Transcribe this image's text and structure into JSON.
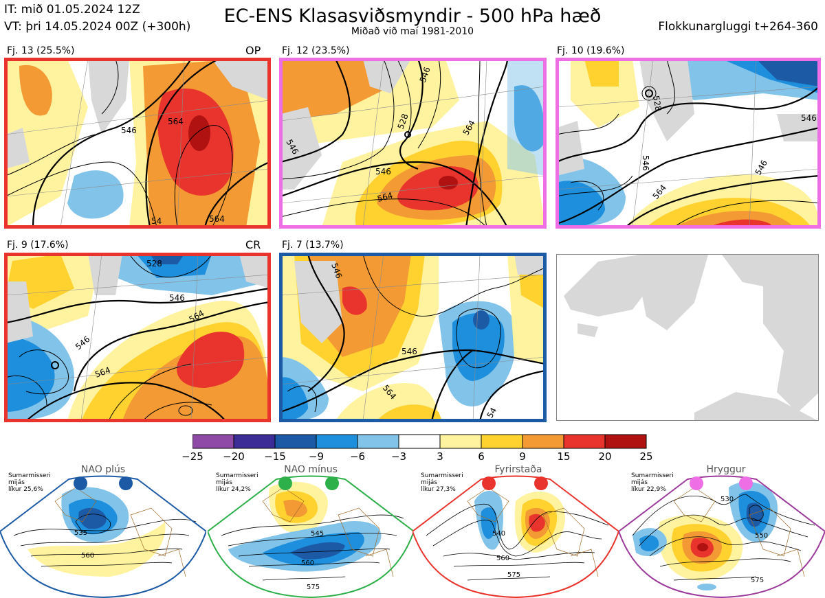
{
  "header": {
    "it": "IT: mið 01.05.2024 12Z",
    "vt": "VT: þri 14.05.2024 00Z  (+300h)",
    "title": "EC-ENS Klasasviðsmyndir - 500 hPa hæð",
    "subtitle": "Miðað við maí 1981-2010",
    "window": "Flokkunargluggi t+264-360"
  },
  "clusters": [
    {
      "label": "Fj. 13 (25.5%)",
      "tag": "OP",
      "regime_color": "#e8342c",
      "contours": [
        "546",
        "564",
        "564",
        "54"
      ]
    },
    {
      "label": "Fj. 12 (23.5%)",
      "tag": "",
      "regime_color": "#ee6ee6",
      "contours": [
        "546",
        "528",
        "564",
        "546",
        "564",
        "546"
      ]
    },
    {
      "label": "Fj. 10 (19.6%)",
      "tag": "",
      "regime_color": "#ee6ee6",
      "contours": [
        "528",
        "546",
        "546",
        "564",
        "546"
      ]
    },
    {
      "label": "Fj. 9 (17.6%)",
      "tag": "CR",
      "regime_color": "#e8342c",
      "contours": [
        "528",
        "546",
        "546",
        "564",
        "564"
      ]
    },
    {
      "label": "Fj. 7 (13.7%)",
      "tag": "",
      "regime_color": "#1c5aa6",
      "contours": [
        "546",
        "546",
        "564",
        "54"
      ]
    }
  ],
  "colorbar": {
    "ticks": [
      "−25",
      "−20",
      "−15",
      "−9",
      "−6",
      "−3",
      "3",
      "6",
      "9",
      "15",
      "20",
      "25"
    ],
    "colors": [
      "#8e4aa6",
      "#3b2c96",
      "#1c5aa6",
      "#1e8fdc",
      "#82c3ea",
      "#ffffff",
      "#fff3a0",
      "#ffd230",
      "#f39a34",
      "#e8342c",
      "#b01212"
    ]
  },
  "regimes": [
    {
      "name": "NAO plús",
      "note": [
        "Sumarmisseri",
        "mijás",
        "líkur 25,6%"
      ],
      "color": "#1c5aa6",
      "dots": "#1c5aa6",
      "contours": [
        "535",
        "560"
      ]
    },
    {
      "name": "NAO mínus",
      "note": [
        "Sumarmisseri",
        "mijás",
        "líkur 24,2%"
      ],
      "color": "#2db04a",
      "dots": "#2db04a",
      "contours": [
        "545",
        "560",
        "575"
      ]
    },
    {
      "name": "Fyrirstaða",
      "note": [
        "Sumarmisseri",
        "mijás",
        "líkur 27,3%"
      ],
      "color": "#e8342c",
      "dots": "#e8342c",
      "contours": [
        "540",
        "560",
        "575"
      ]
    },
    {
      "name": "Hryggur",
      "note": [
        "Sumarmisseri",
        "mijás",
        "líkur 22,9%"
      ],
      "color": "#9b3a9a",
      "dots": "#ee6ee6",
      "contours": [
        "530",
        "550",
        "575"
      ]
    }
  ]
}
